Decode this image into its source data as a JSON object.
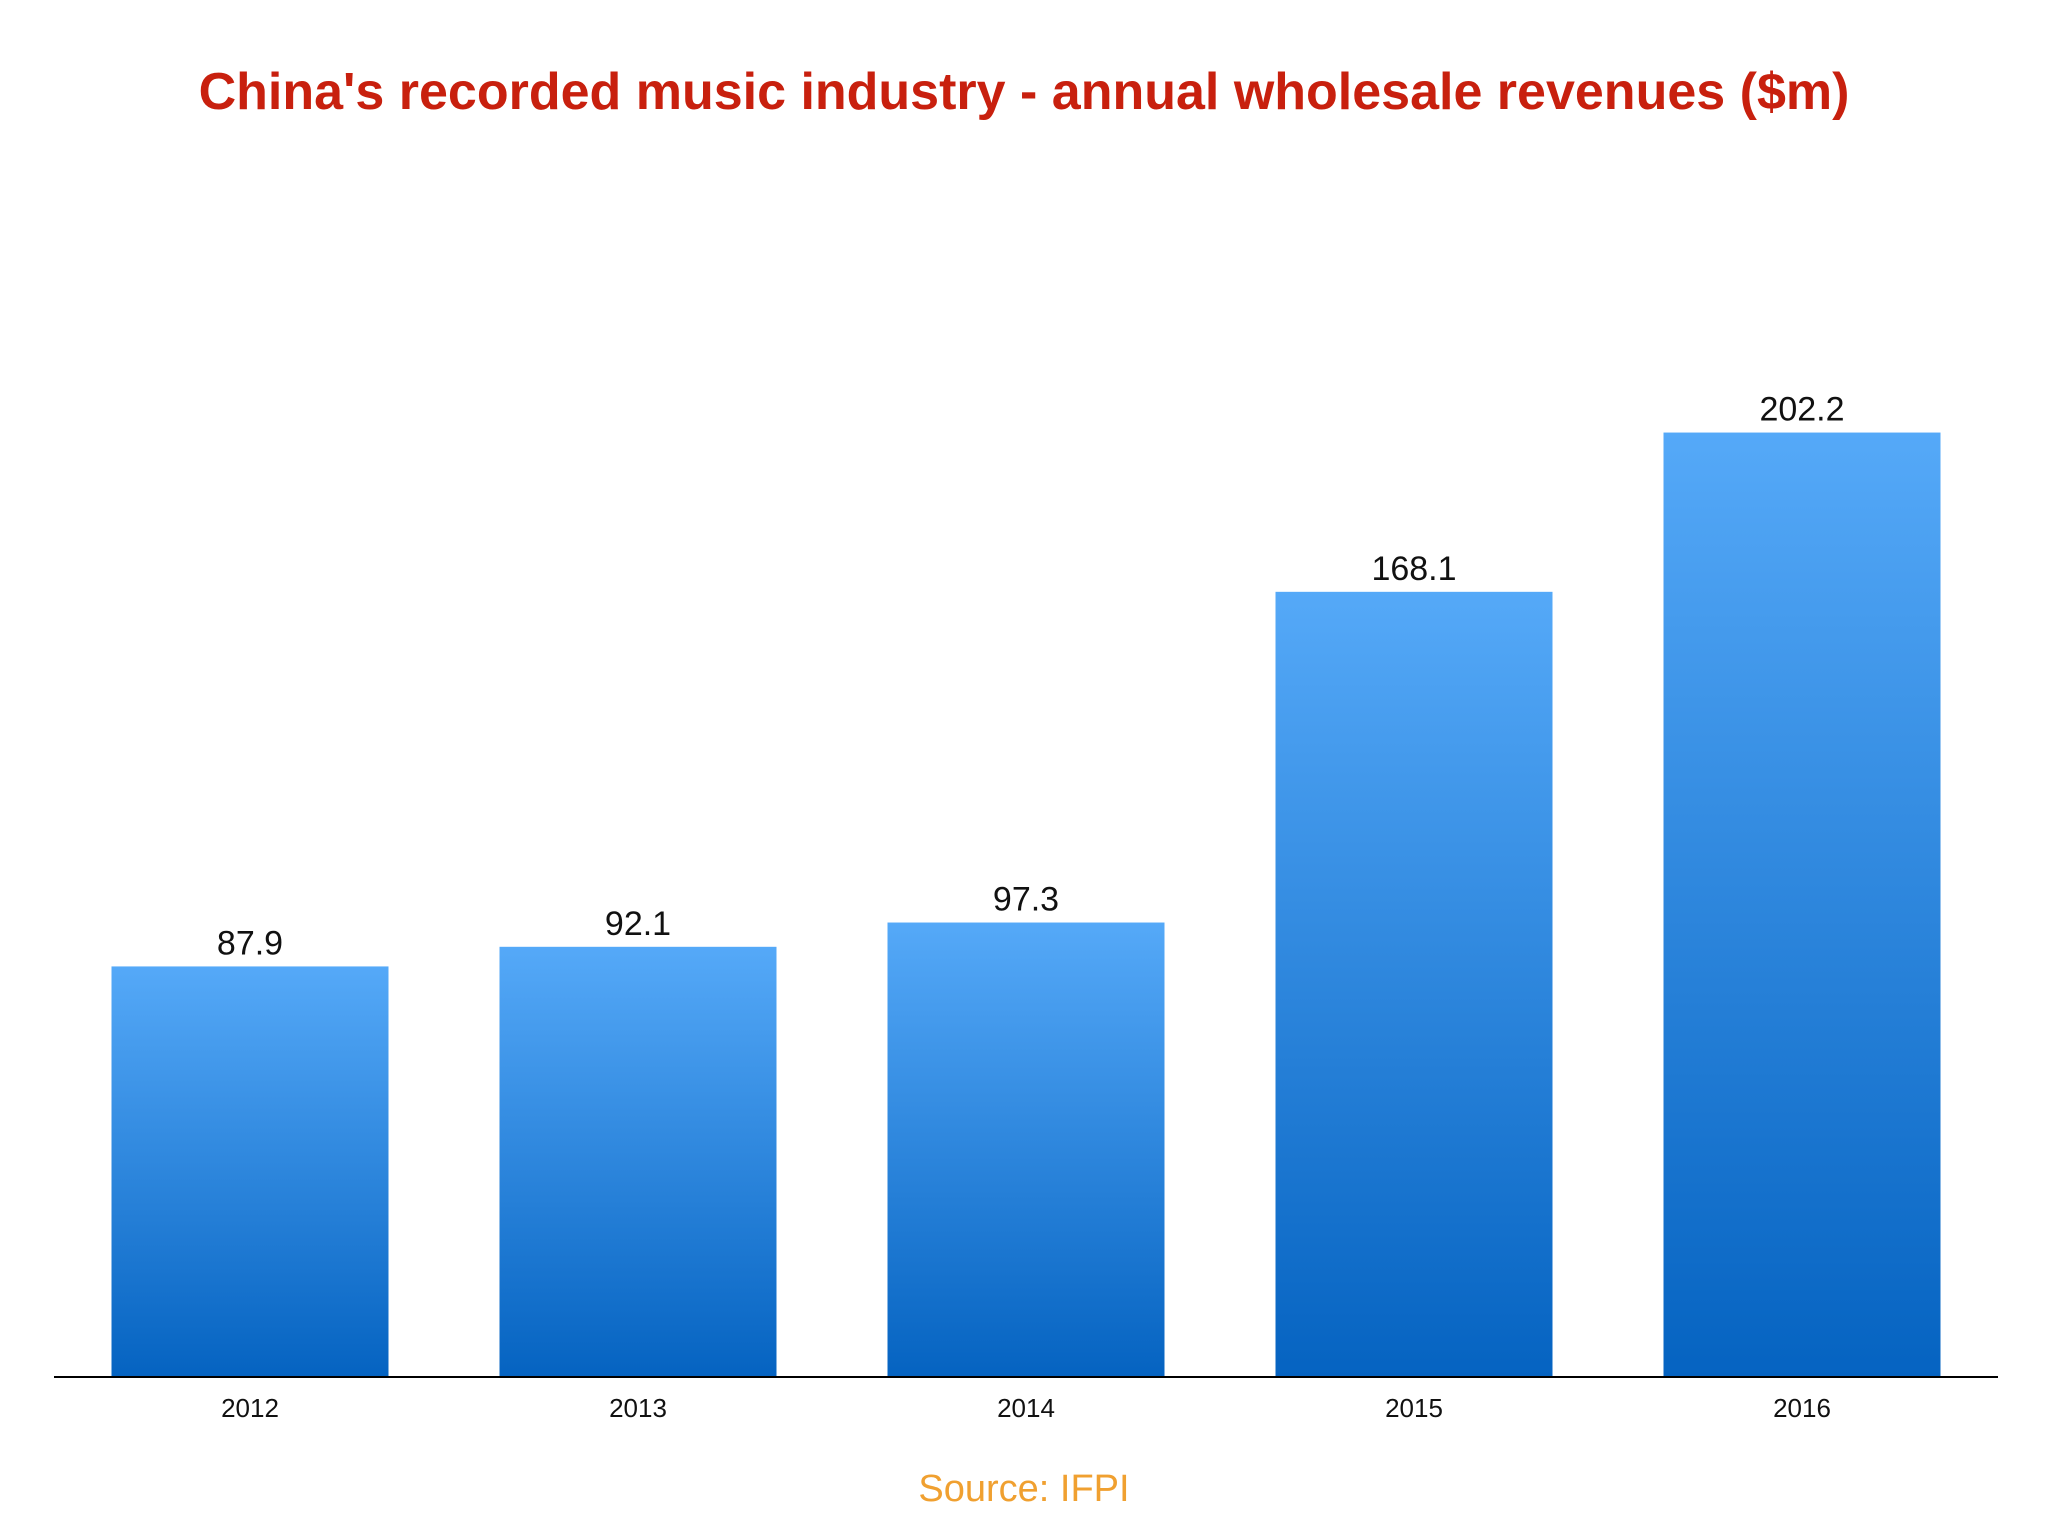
{
  "chart_data": {
    "type": "bar",
    "title": "China's recorded music industry - annual wholesale revenues ($m)",
    "categories": [
      "2012",
      "2013",
      "2014",
      "2015",
      "2016"
    ],
    "values": [
      87.9,
      92.1,
      97.3,
      168.1,
      202.2
    ],
    "value_labels": [
      "87.9",
      "92.1",
      "97.3",
      "168.1",
      "202.2"
    ],
    "xlabel": "",
    "ylabel": "",
    "ylim": [
      0,
      237
    ],
    "grid": false,
    "legend": "none",
    "source": "Source: IFPI",
    "colors": {
      "title": "#c8200e",
      "bar_top": "#55a9f8",
      "bar_bottom": "#0563c1",
      "axis": "#000000",
      "labels": "#111111",
      "source": "#f0a030"
    }
  }
}
